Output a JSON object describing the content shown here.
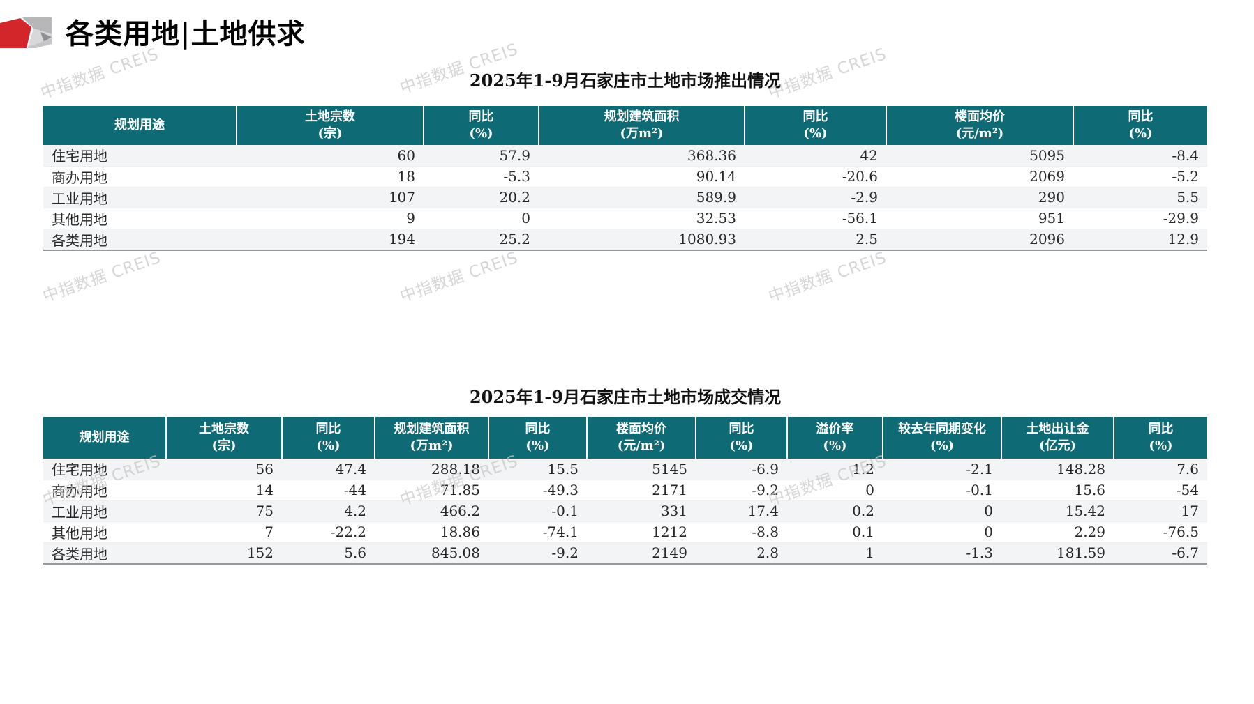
{
  "page": {
    "title": "各类用地|土地供求",
    "watermark_text": "中指数据 CREIS"
  },
  "colors": {
    "header_bg": "#0e6a74",
    "stripe_bg": "#f2f4f6",
    "logo_red": "#d2262a",
    "watermark_gray": "#c9c9c9"
  },
  "supply_table": {
    "title": "2025年1-9月石家庄市土地市场推出情况",
    "columns": [
      {
        "l1": "规划用途",
        "l2": ""
      },
      {
        "l1": "土地宗数",
        "l2": "(宗)"
      },
      {
        "l1": "同比",
        "l2": "(%)"
      },
      {
        "l1": "规划建筑面积",
        "l2": "(万m²)"
      },
      {
        "l1": "同比",
        "l2": "(%)"
      },
      {
        "l1": "楼面均价",
        "l2": "(元/m²)"
      },
      {
        "l1": "同比",
        "l2": "(%)"
      }
    ],
    "rows": [
      [
        "住宅用地",
        "60",
        "57.9",
        "368.36",
        "42",
        "5095",
        "-8.4"
      ],
      [
        "商办用地",
        "18",
        "-5.3",
        "90.14",
        "-20.6",
        "2069",
        "-5.2"
      ],
      [
        "工业用地",
        "107",
        "20.2",
        "589.9",
        "-2.9",
        "290",
        "5.5"
      ],
      [
        "其他用地",
        "9",
        "0",
        "32.53",
        "-56.1",
        "951",
        "-29.9"
      ],
      [
        "各类用地",
        "194",
        "25.2",
        "1080.93",
        "2.5",
        "2096",
        "12.9"
      ]
    ]
  },
  "deal_table": {
    "title": "2025年1-9月石家庄市土地市场成交情况",
    "columns": [
      {
        "l1": "规划用途",
        "l2": ""
      },
      {
        "l1": "土地宗数",
        "l2": "(宗)"
      },
      {
        "l1": "同比",
        "l2": "(%)"
      },
      {
        "l1": "规划建筑面积",
        "l2": "(万m²)"
      },
      {
        "l1": "同比",
        "l2": "(%)"
      },
      {
        "l1": "楼面均价",
        "l2": "(元/m²)"
      },
      {
        "l1": "同比",
        "l2": "(%)"
      },
      {
        "l1": "溢价率",
        "l2": "(%)"
      },
      {
        "l1": "较去年同期变化",
        "l2": "(%)"
      },
      {
        "l1": "土地出让金",
        "l2": "(亿元)"
      },
      {
        "l1": "同比",
        "l2": "(%)"
      }
    ],
    "rows": [
      [
        "住宅用地",
        "56",
        "47.4",
        "288.18",
        "15.5",
        "5145",
        "-6.9",
        "1.2",
        "-2.1",
        "148.28",
        "7.6"
      ],
      [
        "商办用地",
        "14",
        "-44",
        "71.85",
        "-49.3",
        "2171",
        "-9.2",
        "0",
        "-0.1",
        "15.6",
        "-54"
      ],
      [
        "工业用地",
        "75",
        "4.2",
        "466.2",
        "-0.1",
        "331",
        "17.4",
        "0.2",
        "0",
        "15.42",
        "17"
      ],
      [
        "其他用地",
        "7",
        "-22.2",
        "18.86",
        "-74.1",
        "1212",
        "-8.8",
        "0.1",
        "0",
        "2.29",
        "-76.5"
      ],
      [
        "各类用地",
        "152",
        "5.6",
        "845.08",
        "-9.2",
        "2149",
        "2.8",
        "1",
        "-1.3",
        "181.59",
        "-6.7"
      ]
    ]
  }
}
